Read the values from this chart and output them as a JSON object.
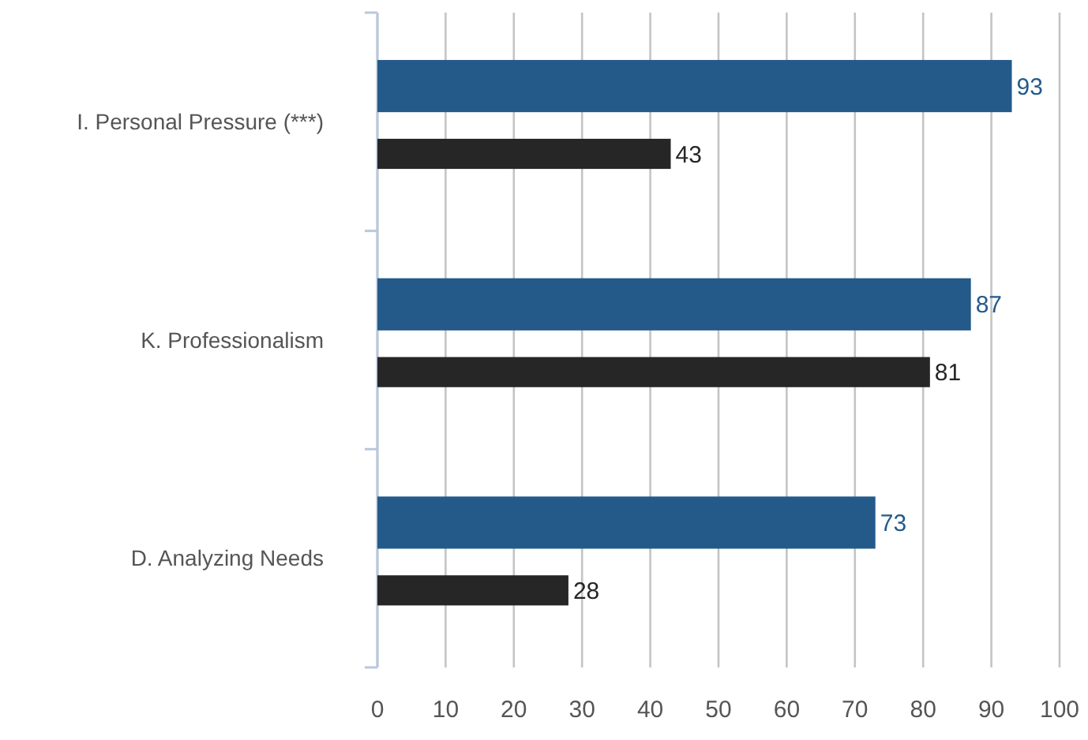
{
  "chart_data": {
    "type": "bar",
    "orientation": "horizontal",
    "categories": [
      "I. Personal Pressure (***)",
      "K. Professionalism",
      "D. Analyzing Needs"
    ],
    "series": [
      {
        "color": "#245a8a",
        "values": [
          93,
          87,
          73
        ]
      },
      {
        "color": "#262626",
        "values": [
          43,
          81,
          28
        ]
      }
    ],
    "xlim": [
      0,
      100
    ],
    "xticks": [
      0,
      10,
      20,
      30,
      40,
      50,
      60,
      70,
      80,
      90,
      100
    ],
    "grid": "x",
    "data_labels": true
  }
}
